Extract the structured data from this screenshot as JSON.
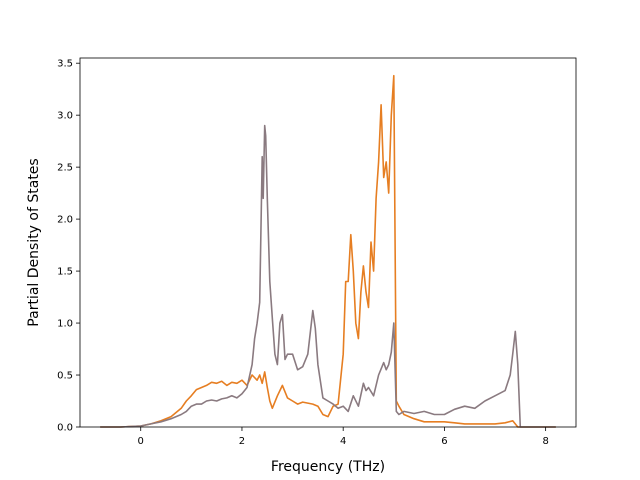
{
  "chart_data": {
    "type": "line",
    "title": "",
    "xlabel": "Frequency (THz)",
    "ylabel": "Partial Density of States",
    "xlim": [
      -1.2,
      8.6
    ],
    "ylim": [
      0.0,
      3.55
    ],
    "xticks": [
      0,
      2,
      4,
      6,
      8
    ],
    "yticks": [
      0.0,
      0.5,
      1.0,
      1.5,
      2.0,
      2.5,
      3.0,
      3.5
    ],
    "xtick_labels": [
      "0",
      "2",
      "4",
      "6",
      "8"
    ],
    "ytick_labels": [
      "0.0",
      "0.5",
      "1.0",
      "1.5",
      "2.0",
      "2.5",
      "3.0",
      "3.5"
    ],
    "grid": false,
    "legend": false,
    "series": [
      {
        "color": "#e67e22",
        "x": [
          -0.8,
          -0.4,
          0,
          0.2,
          0.4,
          0.6,
          0.8,
          0.9,
          1.0,
          1.1,
          1.2,
          1.3,
          1.4,
          1.5,
          1.6,
          1.7,
          1.8,
          1.9,
          2.0,
          2.1,
          2.2,
          2.3,
          2.35,
          2.4,
          2.45,
          2.5,
          2.55,
          2.6,
          2.7,
          2.8,
          2.9,
          3.0,
          3.1,
          3.2,
          3.3,
          3.4,
          3.5,
          3.6,
          3.7,
          3.8,
          3.9,
          4.0,
          4.05,
          4.1,
          4.15,
          4.2,
          4.25,
          4.3,
          4.35,
          4.4,
          4.45,
          4.5,
          4.55,
          4.6,
          4.65,
          4.7,
          4.75,
          4.8,
          4.85,
          4.9,
          4.95,
          5.0,
          5.05,
          5.1,
          5.2,
          5.4,
          5.6,
          5.8,
          6.0,
          6.2,
          6.4,
          6.6,
          6.8,
          7.0,
          7.2,
          7.35,
          7.45,
          7.5,
          8.2
        ],
        "y": [
          0,
          0,
          0.01,
          0.03,
          0.06,
          0.1,
          0.18,
          0.25,
          0.3,
          0.36,
          0.38,
          0.4,
          0.43,
          0.42,
          0.44,
          0.4,
          0.43,
          0.42,
          0.45,
          0.4,
          0.5,
          0.45,
          0.5,
          0.42,
          0.53,
          0.38,
          0.25,
          0.18,
          0.3,
          0.4,
          0.28,
          0.25,
          0.22,
          0.24,
          0.23,
          0.22,
          0.2,
          0.12,
          0.1,
          0.2,
          0.22,
          0.7,
          1.4,
          1.4,
          1.85,
          1.5,
          1.0,
          0.85,
          1.3,
          1.55,
          1.3,
          1.15,
          1.78,
          1.5,
          2.2,
          2.55,
          3.1,
          2.4,
          2.55,
          2.25,
          3.0,
          3.38,
          0.25,
          0.2,
          0.12,
          0.08,
          0.05,
          0.05,
          0.05,
          0.04,
          0.03,
          0.03,
          0.03,
          0.03,
          0.04,
          0.06,
          0.0,
          0.0,
          0.0
        ]
      },
      {
        "color": "#8a7a80",
        "x": [
          -0.8,
          -0.4,
          0,
          0.2,
          0.4,
          0.6,
          0.8,
          0.9,
          1.0,
          1.1,
          1.2,
          1.3,
          1.4,
          1.5,
          1.6,
          1.7,
          1.8,
          1.9,
          2.0,
          2.1,
          2.2,
          2.25,
          2.3,
          2.35,
          2.4,
          2.42,
          2.45,
          2.47,
          2.5,
          2.55,
          2.6,
          2.65,
          2.7,
          2.75,
          2.8,
          2.85,
          2.9,
          3.0,
          3.1,
          3.2,
          3.3,
          3.4,
          3.45,
          3.5,
          3.6,
          3.7,
          3.8,
          3.9,
          4.0,
          4.1,
          4.2,
          4.3,
          4.4,
          4.45,
          4.5,
          4.6,
          4.7,
          4.8,
          4.85,
          4.9,
          4.95,
          5.0,
          5.05,
          5.1,
          5.2,
          5.4,
          5.6,
          5.8,
          6.0,
          6.2,
          6.4,
          6.6,
          6.8,
          7.0,
          7.2,
          7.3,
          7.35,
          7.4,
          7.45,
          7.5,
          8.2
        ],
        "y": [
          0,
          0,
          0.01,
          0.03,
          0.05,
          0.08,
          0.12,
          0.15,
          0.2,
          0.22,
          0.22,
          0.25,
          0.26,
          0.25,
          0.27,
          0.28,
          0.3,
          0.28,
          0.32,
          0.38,
          0.6,
          0.85,
          1.0,
          1.2,
          2.6,
          2.2,
          2.9,
          2.8,
          2.2,
          1.4,
          1.05,
          0.7,
          0.6,
          1.0,
          1.08,
          0.65,
          0.7,
          0.7,
          0.55,
          0.58,
          0.7,
          1.12,
          0.95,
          0.6,
          0.28,
          0.25,
          0.22,
          0.18,
          0.2,
          0.15,
          0.3,
          0.2,
          0.42,
          0.35,
          0.38,
          0.3,
          0.5,
          0.62,
          0.55,
          0.6,
          0.72,
          1.0,
          0.15,
          0.12,
          0.15,
          0.13,
          0.15,
          0.12,
          0.12,
          0.17,
          0.2,
          0.18,
          0.25,
          0.3,
          0.35,
          0.5,
          0.7,
          0.92,
          0.6,
          0.0,
          0.0
        ]
      }
    ]
  }
}
